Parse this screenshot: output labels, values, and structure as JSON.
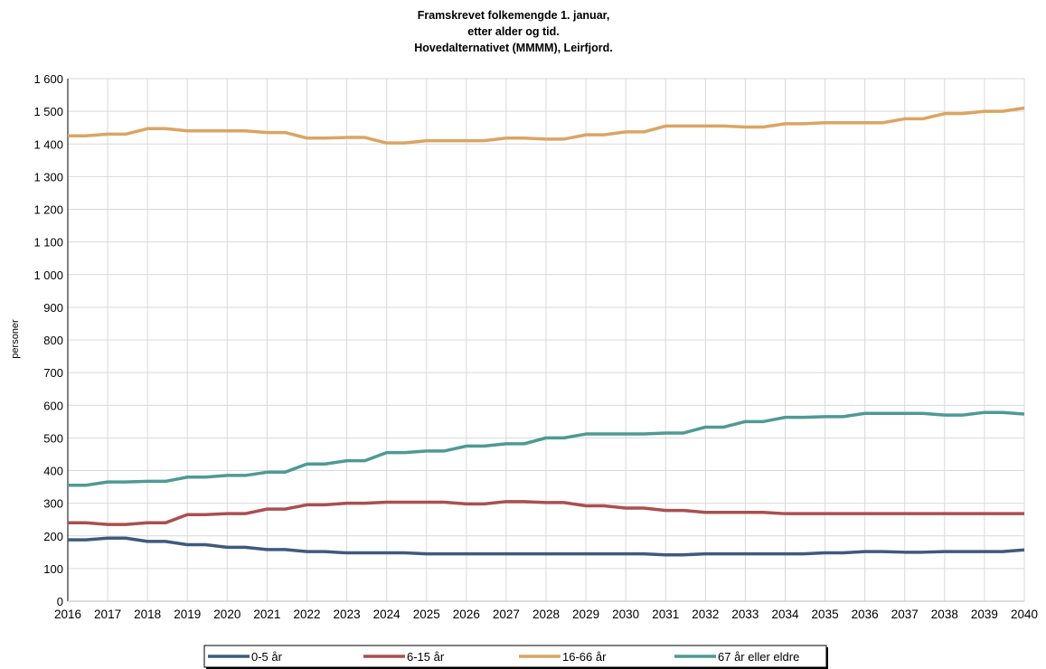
{
  "chart_data": {
    "type": "line",
    "title_lines": [
      "Framskrevet folkemengde 1. januar,",
      "etter alder og tid.",
      "Hovedalternativet (MMMM), Leirfjord."
    ],
    "ylabel": "personer",
    "xlabel": "",
    "ylim": [
      0,
      1600
    ],
    "y_ticks": [
      "0",
      "100",
      "200",
      "300",
      "400",
      "500",
      "600",
      "700",
      "800",
      "900",
      "1 000",
      "1 100",
      "1 200",
      "1 300",
      "1 400",
      "1 500",
      "1 600"
    ],
    "y_tick_values": [
      0,
      100,
      200,
      300,
      400,
      500,
      600,
      700,
      800,
      900,
      1000,
      1100,
      1200,
      1300,
      1400,
      1500,
      1600
    ],
    "x": [
      "2016",
      "2017",
      "2018",
      "2019",
      "2020",
      "2021",
      "2022",
      "2023",
      "2024",
      "2025",
      "2026",
      "2027",
      "2028",
      "2029",
      "2030",
      "2031",
      "2032",
      "2033",
      "2034",
      "2035",
      "2036",
      "2037",
      "2038",
      "2039",
      "2040"
    ],
    "grid": true,
    "legend_position": "bottom",
    "series": [
      {
        "name": "0-5 år",
        "color": "#3f5a7d",
        "values": [
          188,
          193,
          183,
          173,
          165,
          158,
          152,
          148,
          148,
          145,
          145,
          145,
          145,
          145,
          145,
          142,
          145,
          145,
          145,
          148,
          152,
          150,
          152,
          152,
          157
        ]
      },
      {
        "name": "6-15 år",
        "color": "#ab4f4f",
        "values": [
          240,
          235,
          240,
          265,
          268,
          282,
          295,
          300,
          303,
          303,
          298,
          305,
          302,
          292,
          285,
          278,
          272,
          272,
          268,
          268,
          268,
          268,
          268,
          268,
          268
        ]
      },
      {
        "name": "16-66 år",
        "color": "#daa563",
        "values": [
          1425,
          1430,
          1447,
          1440,
          1440,
          1435,
          1418,
          1420,
          1403,
          1410,
          1410,
          1418,
          1415,
          1428,
          1437,
          1455,
          1455,
          1452,
          1462,
          1465,
          1465,
          1477,
          1493,
          1500,
          1510
        ]
      },
      {
        "name": "67 år eller eldre",
        "color": "#4e9a94",
        "values": [
          355,
          365,
          367,
          380,
          385,
          395,
          420,
          430,
          455,
          460,
          475,
          482,
          500,
          512,
          512,
          515,
          533,
          550,
          563,
          565,
          575,
          575,
          570,
          578,
          573
        ]
      }
    ]
  }
}
